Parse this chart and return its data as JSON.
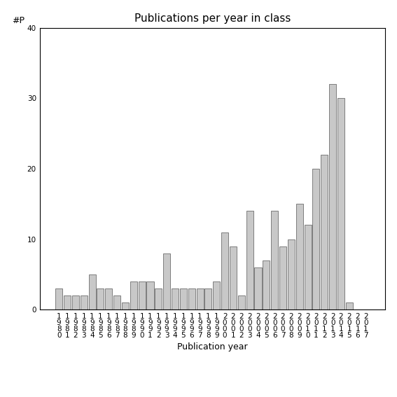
{
  "title": "Publications per year in class",
  "xlabel": "Publication year",
  "ylabel": "#P",
  "ylim": [
    0,
    40
  ],
  "yticks": [
    0,
    10,
    20,
    30,
    40
  ],
  "bar_color": "#c8c8c8",
  "bar_edgecolor": "#555555",
  "years": [
    1980,
    1981,
    1982,
    1983,
    1984,
    1985,
    1986,
    1987,
    1988,
    1989,
    1990,
    1991,
    1992,
    1993,
    1994,
    1995,
    1996,
    1997,
    1998,
    1999,
    2000,
    2001,
    2002,
    2003,
    2004,
    2005,
    2006,
    2007,
    2008,
    2009,
    2010,
    2011,
    2012,
    2013,
    2014,
    2015,
    2016,
    2017
  ],
  "values": [
    3,
    2,
    2,
    2,
    5,
    3,
    3,
    2,
    1,
    4,
    4,
    4,
    3,
    8,
    3,
    3,
    3,
    3,
    3,
    4,
    11,
    9,
    2,
    14,
    6,
    7,
    14,
    9,
    10,
    15,
    12,
    20,
    22,
    32,
    30,
    1,
    0,
    0
  ],
  "background_color": "#ffffff",
  "title_fontsize": 11,
  "label_fontsize": 9,
  "tick_fontsize": 7.5
}
